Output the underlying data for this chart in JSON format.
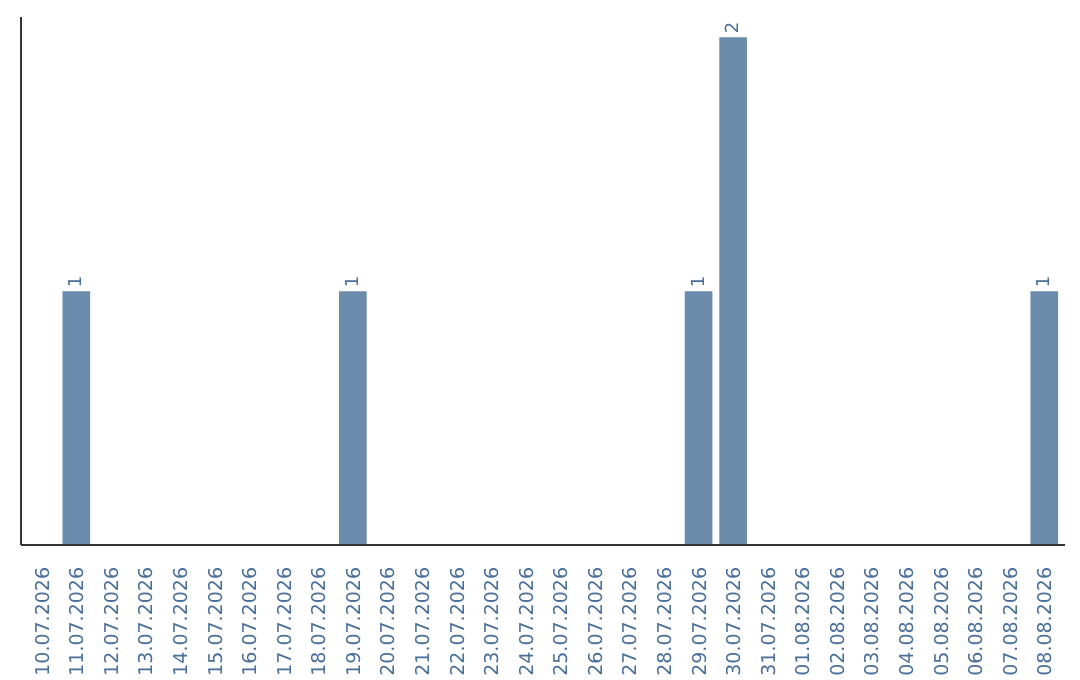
{
  "chart_data": {
    "type": "bar",
    "categories": [
      "10.07.2026",
      "11.07.2026",
      "12.07.2026",
      "13.07.2026",
      "14.07.2026",
      "15.07.2026",
      "16.07.2026",
      "17.07.2026",
      "18.07.2026",
      "19.07.2026",
      "20.07.2026",
      "21.07.2026",
      "22.07.2026",
      "23.07.2026",
      "24.07.2026",
      "25.07.2026",
      "26.07.2026",
      "27.07.2026",
      "28.07.2026",
      "29.07.2026",
      "30.07.2026",
      "31.07.2026",
      "01.08.2026",
      "02.08.2026",
      "03.08.2026",
      "04.08.2026",
      "05.08.2026",
      "06.08.2026",
      "07.08.2026",
      "08.08.2026"
    ],
    "values": [
      0,
      1,
      0,
      0,
      0,
      0,
      0,
      0,
      0,
      1,
      0,
      0,
      0,
      0,
      0,
      0,
      0,
      0,
      0,
      1,
      2,
      0,
      0,
      0,
      0,
      0,
      0,
      0,
      0,
      1
    ],
    "value_labels": [
      null,
      "1",
      null,
      null,
      null,
      null,
      null,
      null,
      null,
      "1",
      null,
      null,
      null,
      null,
      null,
      null,
      null,
      null,
      null,
      "1",
      "2",
      null,
      null,
      null,
      null,
      null,
      null,
      null,
      null,
      "1"
    ],
    "color": "#6b8cab",
    "tick_labels": "x",
    "grid": false
  }
}
